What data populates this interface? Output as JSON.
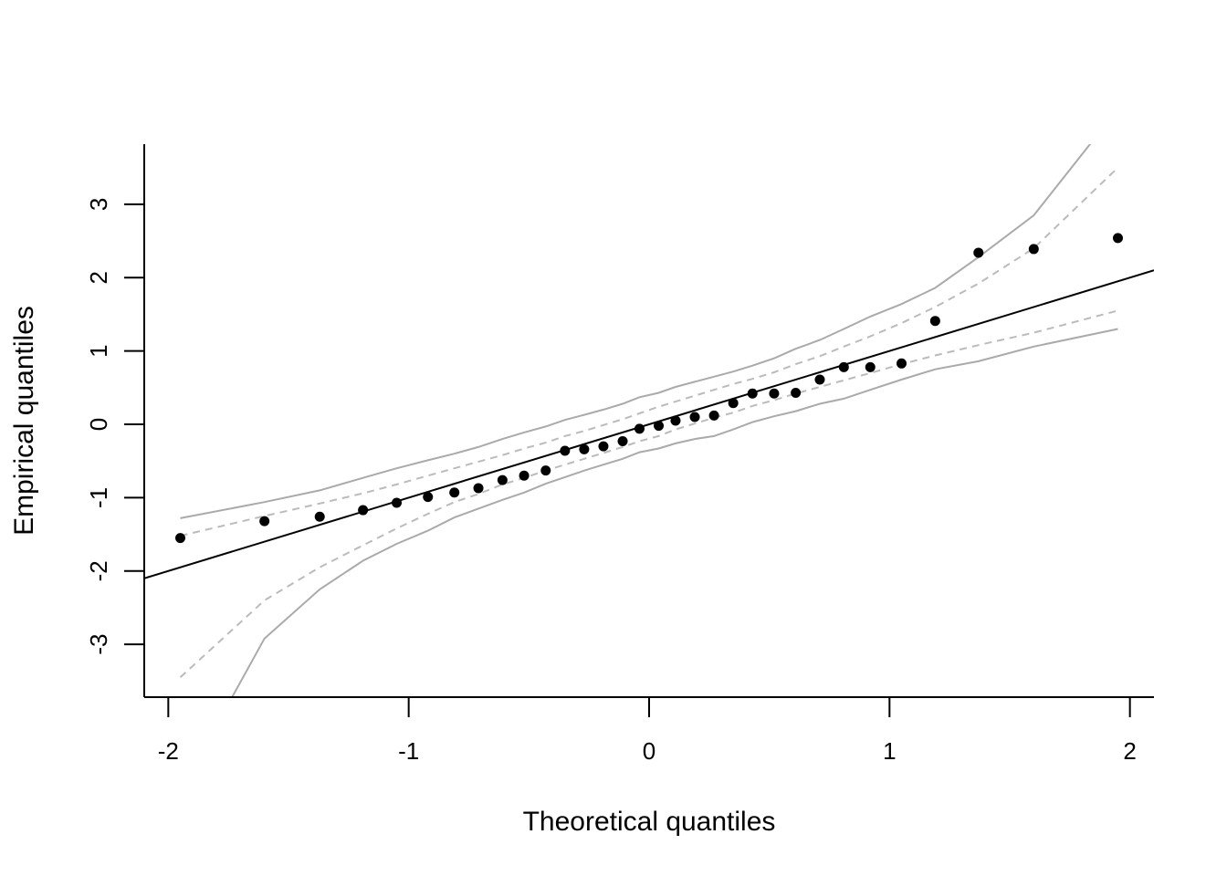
{
  "chart_data": {
    "type": "scatter",
    "title": "",
    "xlabel": "Theoretical quantiles",
    "ylabel": "Empirical quantiles",
    "xlim": [
      -2.1,
      2.1
    ],
    "ylim": [
      -3.72,
      3.82
    ],
    "xticks": [
      -2,
      -1,
      0,
      1,
      2
    ],
    "xtick_labels": [
      "-2",
      "-1",
      "0",
      "1",
      "2"
    ],
    "yticks": [
      -3,
      -2,
      -1,
      0,
      1,
      2,
      3
    ],
    "ytick_labels": [
      "-3",
      "-2",
      "-1",
      "0",
      "1",
      "2",
      "3"
    ],
    "grid": false,
    "colors": {
      "points": "#000000",
      "reference_line": "#000000",
      "envelope_outer": "#aaaaaa",
      "envelope_inner": "#bbbbbb"
    },
    "points": {
      "x": [
        -1.95,
        -1.6,
        -1.37,
        -1.19,
        -1.05,
        -0.92,
        -0.81,
        -0.71,
        -0.61,
        -0.52,
        -0.43,
        -0.35,
        -0.27,
        -0.19,
        -0.11,
        -0.04,
        0.04,
        0.11,
        0.19,
        0.27,
        0.35,
        0.43,
        0.52,
        0.61,
        0.71,
        0.81,
        0.92,
        1.05,
        1.19,
        1.37,
        1.6,
        1.95
      ],
      "y": [
        -1.55,
        -1.32,
        -1.26,
        -1.17,
        -1.07,
        -0.99,
        -0.93,
        -0.87,
        -0.76,
        -0.7,
        -0.63,
        -0.36,
        -0.34,
        -0.3,
        -0.23,
        -0.06,
        -0.02,
        0.05,
        0.1,
        0.12,
        0.29,
        0.42,
        0.42,
        0.43,
        0.61,
        0.78,
        0.78,
        0.83,
        1.41,
        2.34,
        2.39,
        2.54
      ]
    },
    "reference_line": {
      "intercept": 0.0,
      "slope": 1.0
    },
    "envelope": {
      "x": [
        -1.95,
        -1.6,
        -1.37,
        -1.19,
        -1.05,
        -0.92,
        -0.81,
        -0.71,
        -0.61,
        -0.52,
        -0.43,
        -0.35,
        -0.27,
        -0.19,
        -0.11,
        -0.04,
        0.04,
        0.11,
        0.19,
        0.27,
        0.35,
        0.43,
        0.52,
        0.61,
        0.71,
        0.81,
        0.92,
        1.05,
        1.19,
        1.37,
        1.6,
        1.95
      ],
      "outer_upper": [
        -1.28,
        -1.06,
        -0.9,
        -0.73,
        -0.6,
        -0.49,
        -0.4,
        -0.31,
        -0.2,
        -0.11,
        -0.03,
        0.06,
        0.13,
        0.2,
        0.28,
        0.37,
        0.43,
        0.51,
        0.58,
        0.65,
        0.72,
        0.8,
        0.9,
        1.03,
        1.15,
        1.3,
        1.47,
        1.64,
        1.86,
        2.28,
        2.85,
        4.3
      ],
      "inner_upper": [
        -1.52,
        -1.25,
        -1.08,
        -0.94,
        -0.82,
        -0.7,
        -0.6,
        -0.51,
        -0.42,
        -0.33,
        -0.25,
        -0.16,
        -0.09,
        -0.01,
        0.07,
        0.15,
        0.24,
        0.31,
        0.39,
        0.47,
        0.55,
        0.62,
        0.71,
        0.82,
        0.93,
        1.06,
        1.2,
        1.38,
        1.6,
        1.92,
        2.4,
        3.5
      ],
      "inner_lower": [
        -3.45,
        -2.4,
        -1.95,
        -1.65,
        -1.42,
        -1.22,
        -1.06,
        -0.95,
        -0.82,
        -0.73,
        -0.63,
        -0.55,
        -0.47,
        -0.39,
        -0.31,
        -0.23,
        -0.16,
        -0.07,
        0.01,
        0.09,
        0.16,
        0.25,
        0.33,
        0.42,
        0.51,
        0.6,
        0.7,
        0.82,
        0.94,
        1.08,
        1.25,
        1.55
      ],
      "outer_lower": [
        -5.0,
        -2.92,
        -2.25,
        -1.86,
        -1.63,
        -1.45,
        -1.27,
        -1.15,
        -1.03,
        -0.93,
        -0.81,
        -0.72,
        -0.63,
        -0.55,
        -0.47,
        -0.38,
        -0.33,
        -0.26,
        -0.2,
        -0.16,
        -0.07,
        0.03,
        0.11,
        0.18,
        0.28,
        0.35,
        0.47,
        0.61,
        0.75,
        0.86,
        1.06,
        1.3
      ]
    }
  }
}
